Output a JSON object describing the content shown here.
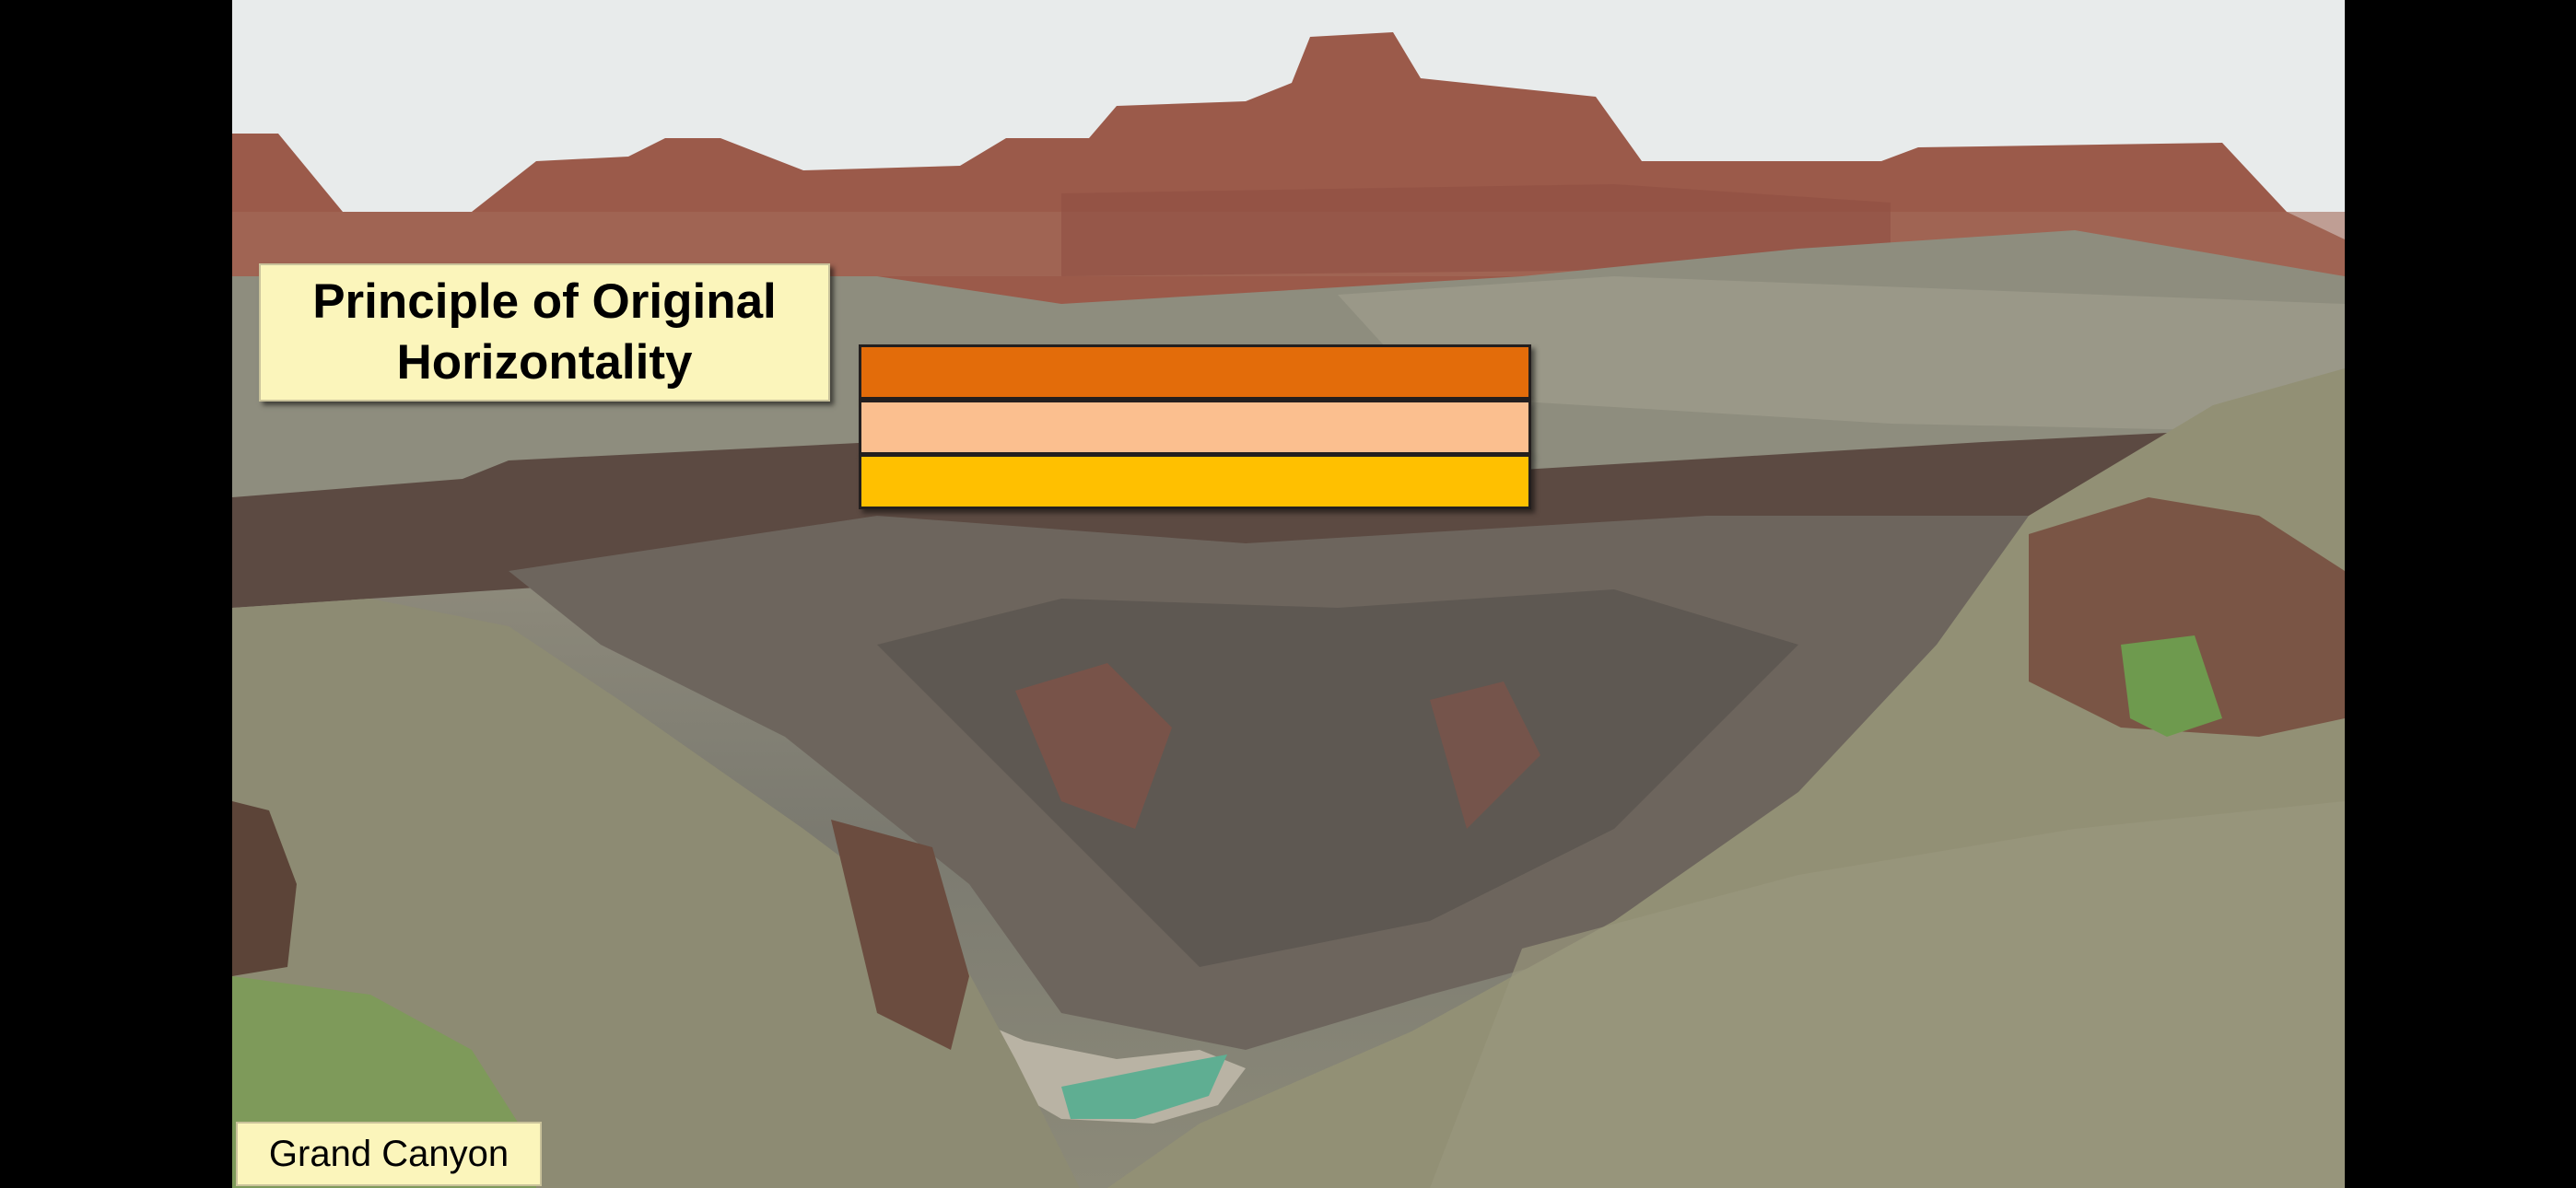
{
  "slide": {
    "title": "Principle of Original\nHorizontality",
    "caption": "Grand Canyon"
  },
  "layers": [
    {
      "name": "top-layer",
      "color": "#e36c0a"
    },
    {
      "name": "middle-layer",
      "color": "#fbbf8f"
    },
    {
      "name": "bottom-layer",
      "color": "#ffc000"
    }
  ]
}
